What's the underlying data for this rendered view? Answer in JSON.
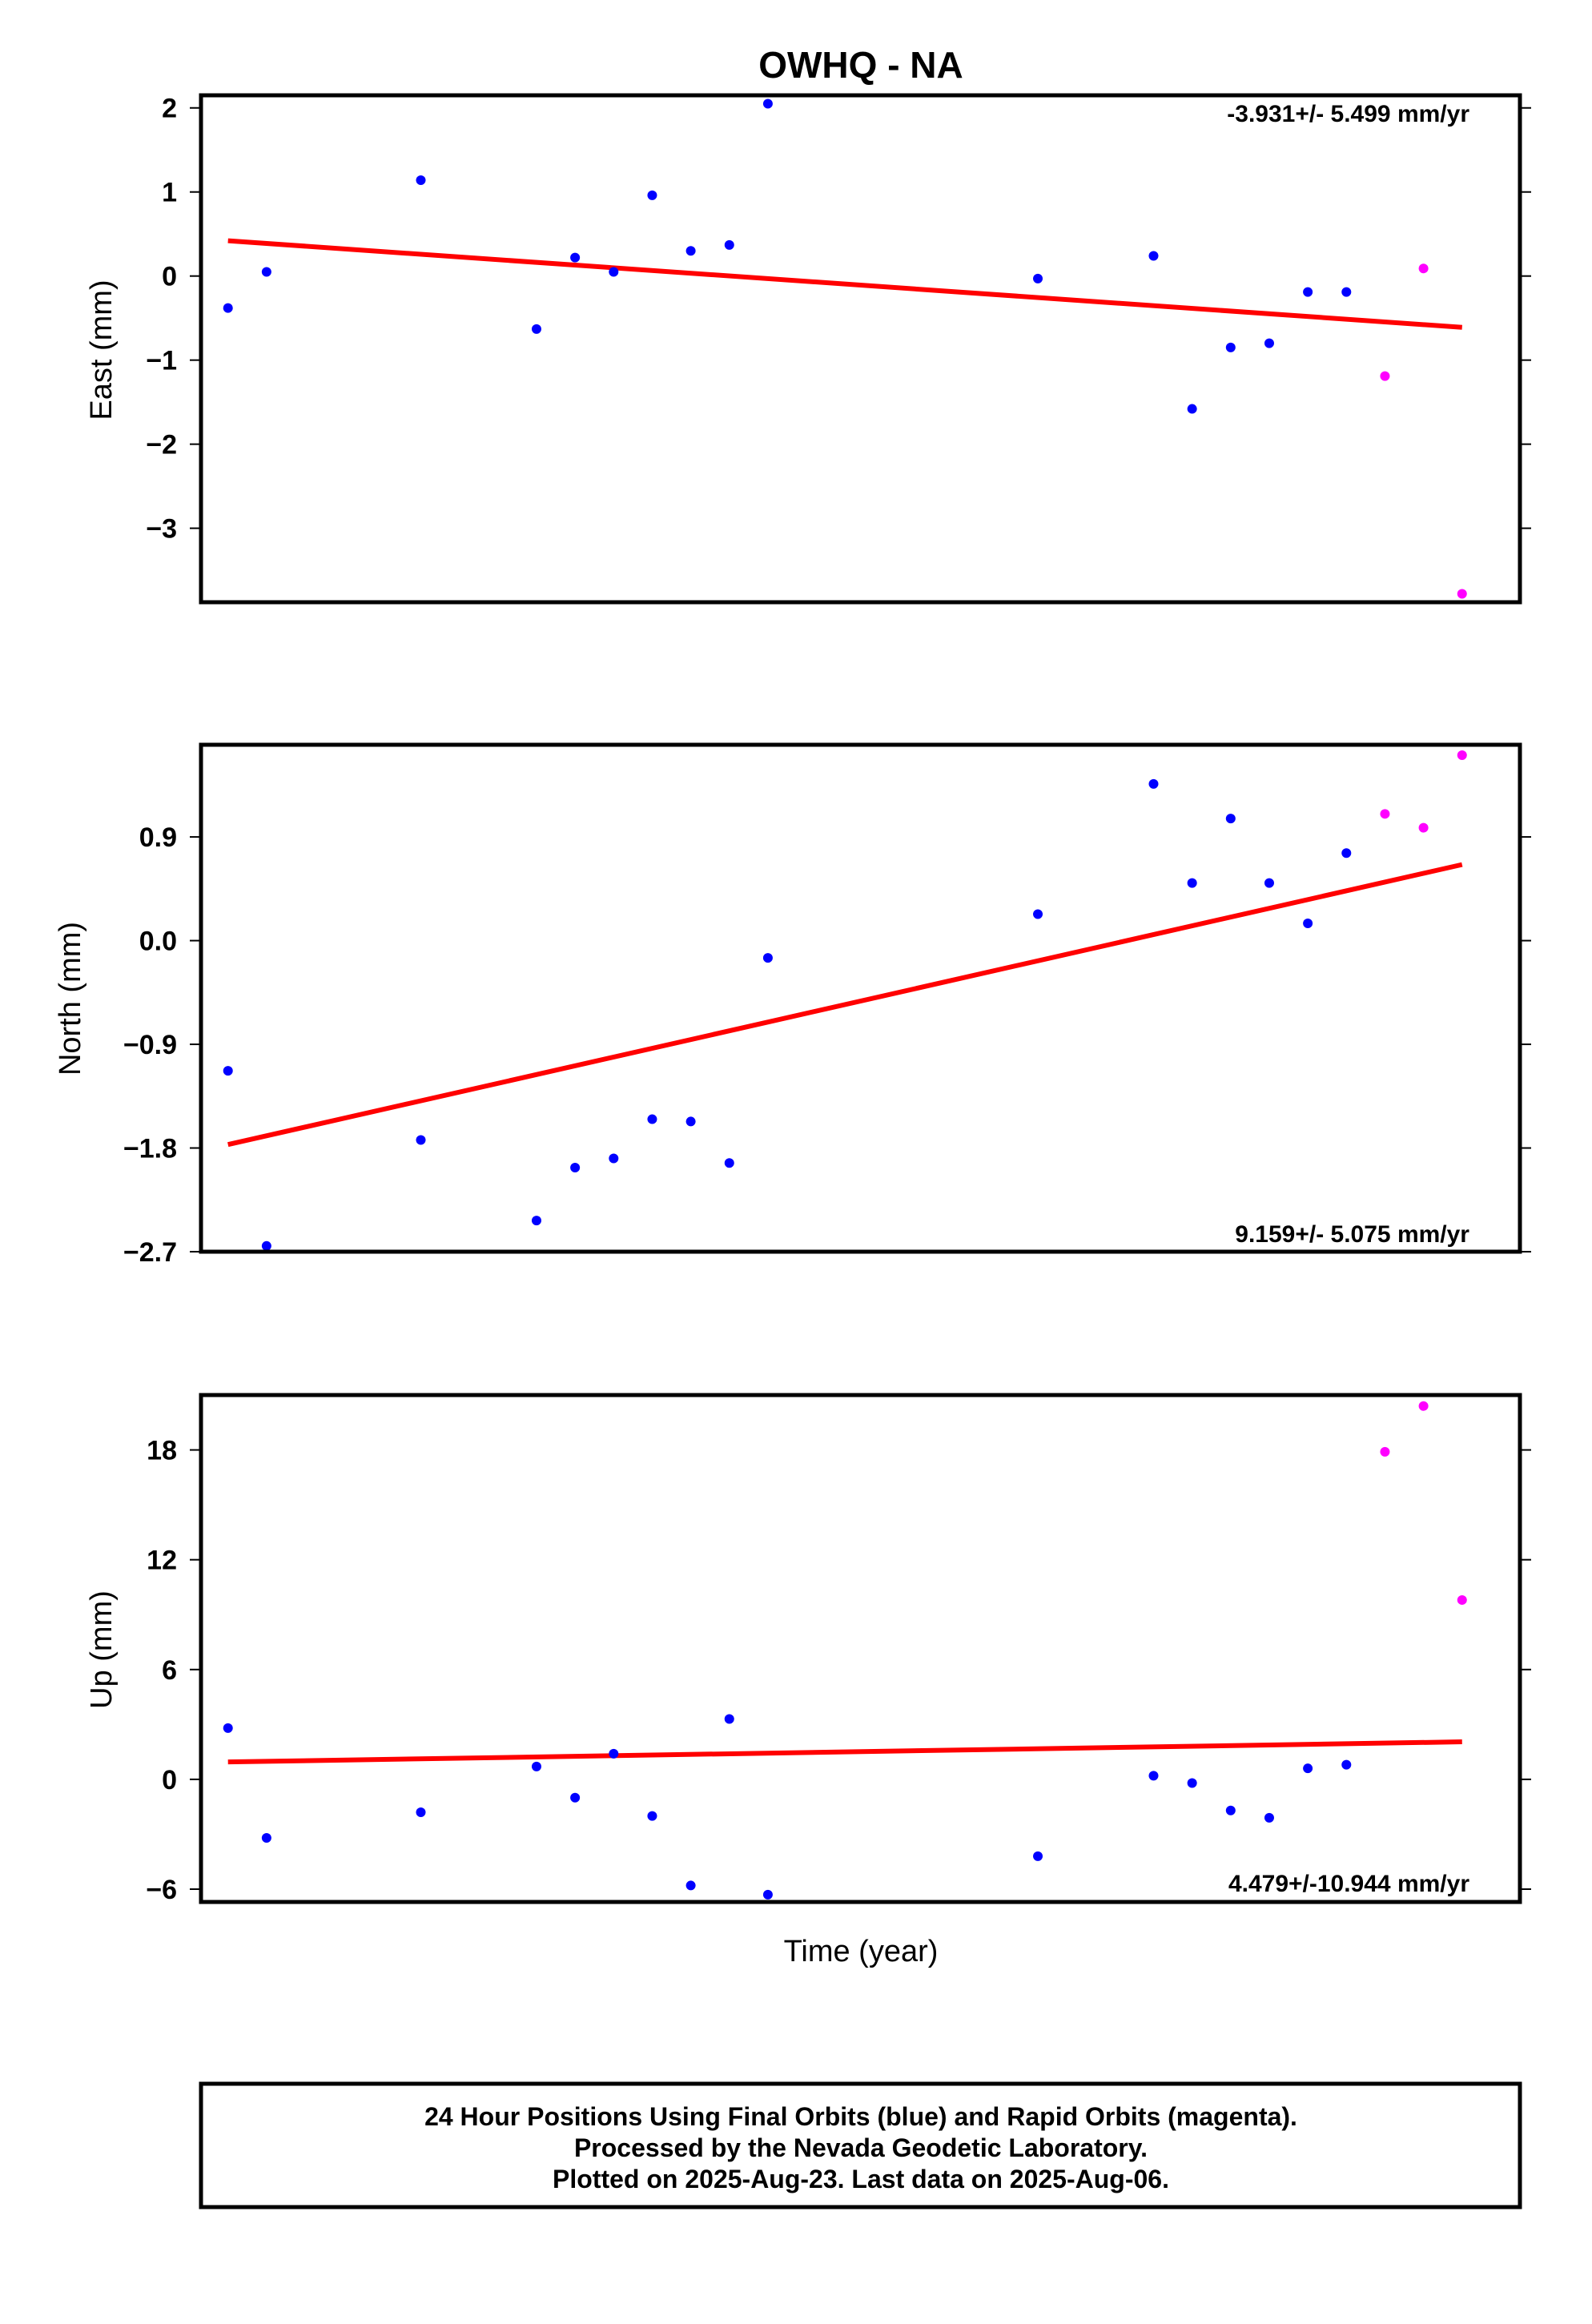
{
  "chart_data": {
    "type": "scatter",
    "title": "OWHQ - NA",
    "xlabel": "Time (year)",
    "colors": {
      "final": "#0000ff",
      "rapid": "#ff00ff",
      "fit": "#ff0000"
    },
    "x": [
      1,
      2,
      6,
      9,
      10,
      11,
      12,
      13,
      14,
      15,
      22,
      25,
      26,
      27,
      28,
      29,
      30,
      31,
      32,
      33
    ],
    "orbit": [
      "final",
      "final",
      "final",
      "final",
      "final",
      "final",
      "final",
      "final",
      "final",
      "final",
      "final",
      "final",
      "final",
      "final",
      "final",
      "final",
      "final",
      "rapid",
      "rapid",
      "rapid"
    ],
    "xlim": [
      0.3,
      34.5
    ],
    "panels": [
      {
        "ylabel": "East (mm)",
        "rate_text": "-3.931+/- 5.499 mm/yr",
        "rate_position": "top-right",
        "ylim": [
          -3.88,
          2.15
        ],
        "ticks": [
          2,
          1,
          0,
          -1,
          -2,
          -3
        ],
        "tick_labels": [
          "2",
          "1",
          "0",
          "−1",
          "−2",
          "−3"
        ],
        "y": [
          -0.38,
          0.05,
          1.14,
          -0.63,
          0.22,
          0.05,
          0.96,
          0.3,
          0.37,
          2.05,
          -0.03,
          0.24,
          -1.58,
          -0.85,
          -0.8,
          -0.19,
          -0.19,
          -1.19,
          0.09,
          -3.78
        ],
        "fit": [
          0.42,
          -0.61
        ]
      },
      {
        "ylabel": "North (mm)",
        "rate_text": "9.159+/- 5.075 mm/yr",
        "rate_position": "bottom-right",
        "ylim": [
          -2.7,
          1.7
        ],
        "ticks": [
          0.9,
          0.0,
          -0.9,
          -1.8,
          -2.7
        ],
        "tick_labels": [
          "0.9",
          "0.0",
          "−0.9",
          "−1.8",
          "−2.7"
        ],
        "y": [
          -1.13,
          -2.65,
          -1.73,
          -2.43,
          -1.97,
          -1.89,
          -1.55,
          -1.57,
          -1.93,
          -0.15,
          0.23,
          1.36,
          0.5,
          1.06,
          0.5,
          0.15,
          0.76,
          1.1,
          0.98,
          1.61
        ],
        "fit": [
          -1.77,
          0.66
        ]
      },
      {
        "ylabel": "Up (mm)",
        "rate_text": "4.479+/-10.944 mm/yr",
        "rate_position": "bottom-right",
        "ylim": [
          -6.7,
          21.0
        ],
        "ticks": [
          18,
          12,
          6,
          0,
          -6
        ],
        "tick_labels": [
          "18",
          "12",
          "6",
          "0",
          "−6"
        ],
        "y": [
          2.8,
          -3.2,
          -1.8,
          0.7,
          -1.0,
          1.4,
          -2.0,
          -5.8,
          3.3,
          -6.3,
          -4.2,
          0.2,
          -0.2,
          -1.7,
          -2.1,
          0.6,
          0.8,
          17.9,
          20.4,
          9.8
        ],
        "fit": [
          0.95,
          2.05
        ]
      }
    ]
  },
  "footer": {
    "line1": "24 Hour Positions Using Final Orbits (blue) and Rapid Orbits (magenta).",
    "line2": "Processed by the Nevada Geodetic Laboratory.",
    "line3": "Plotted on 2025-Aug-23. Last data on 2025-Aug-06."
  }
}
